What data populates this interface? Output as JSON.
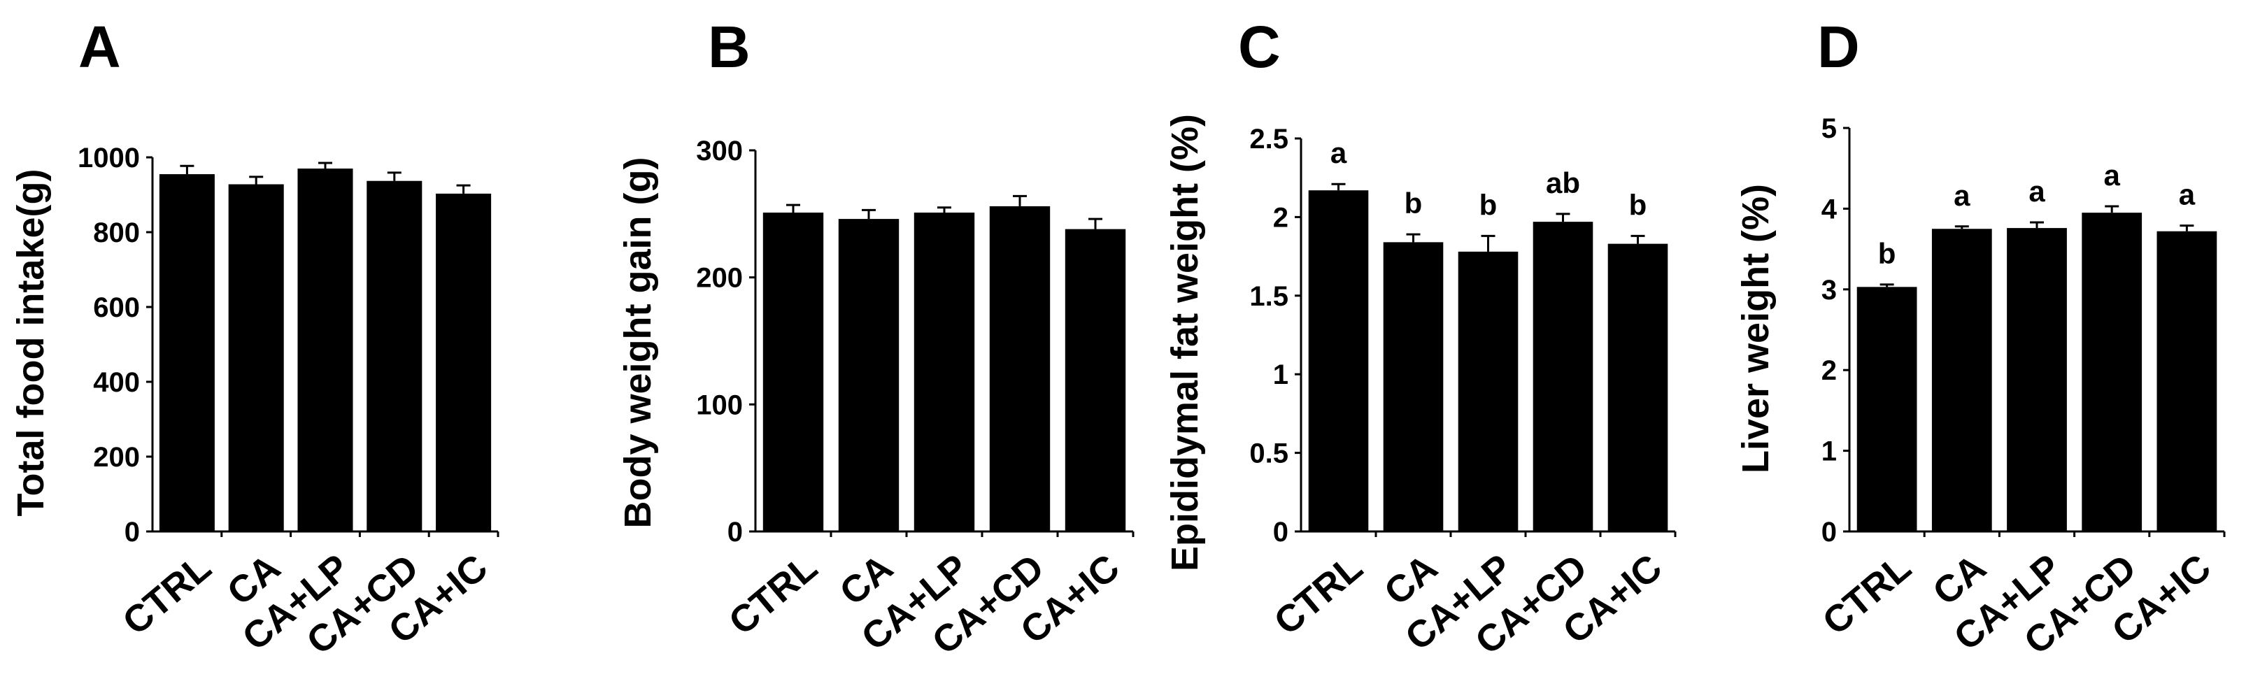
{
  "chart_data": [
    {
      "type": "bar",
      "panel": "A",
      "ylabel": "Total food intake(g)",
      "categories": [
        "CTRL",
        "CA",
        "CA+LP",
        "CA+CD",
        "CA+IC"
      ],
      "values": [
        955,
        928,
        970,
        937,
        903
      ],
      "errors": [
        22,
        20,
        15,
        22,
        22
      ],
      "ylim": [
        0,
        1000
      ],
      "yticks": [
        0,
        200,
        400,
        600,
        800,
        1000
      ],
      "ytick_labels": [
        "0",
        "200",
        "400",
        "600",
        "800",
        "1000"
      ],
      "significance": []
    },
    {
      "type": "bar",
      "panel": "B",
      "ylabel": "Body weight gain (g)",
      "categories": [
        "CTRL",
        "CA",
        "CA+LP",
        "CA+CD",
        "CA+IC"
      ],
      "values": [
        251,
        246,
        251,
        256,
        238
      ],
      "errors": [
        6,
        7,
        4,
        8,
        8
      ],
      "ylim": [
        0,
        300
      ],
      "yticks": [
        0,
        100,
        200,
        300
      ],
      "ytick_labels": [
        "0",
        "100",
        "200",
        "300"
      ],
      "significance": []
    },
    {
      "type": "bar",
      "panel": "C",
      "ylabel": "Epididymal fat weight (%)",
      "categories": [
        "CTRL",
        "CA",
        "CA+LP",
        "CA+CD",
        "CA+IC"
      ],
      "values": [
        2.17,
        1.84,
        1.78,
        1.97,
        1.83
      ],
      "errors": [
        0.04,
        0.05,
        0.1,
        0.05,
        0.05
      ],
      "ylim": [
        0,
        2.5
      ],
      "yticks": [
        0,
        0.5,
        1,
        1.5,
        2,
        2.5
      ],
      "ytick_labels": [
        "0",
        "0.5",
        "1",
        "1.5",
        "2",
        "2.5"
      ],
      "significance": [
        "a",
        "b",
        "b",
        "ab",
        "b"
      ]
    },
    {
      "type": "bar",
      "panel": "D",
      "ylabel": "Liver weight (%)",
      "categories": [
        "CTRL",
        "CA",
        "CA+LP",
        "CA+CD",
        "CA+IC"
      ],
      "values": [
        3.03,
        3.75,
        3.76,
        3.95,
        3.72
      ],
      "errors": [
        0.03,
        0.03,
        0.07,
        0.08,
        0.07
      ],
      "ylim": [
        0,
        5
      ],
      "yticks": [
        0,
        1,
        2,
        3,
        4,
        5
      ],
      "ytick_labels": [
        "0",
        "1",
        "2",
        "3",
        "4",
        "5"
      ],
      "significance": [
        "b",
        "a",
        "a",
        "a",
        "a"
      ]
    }
  ]
}
